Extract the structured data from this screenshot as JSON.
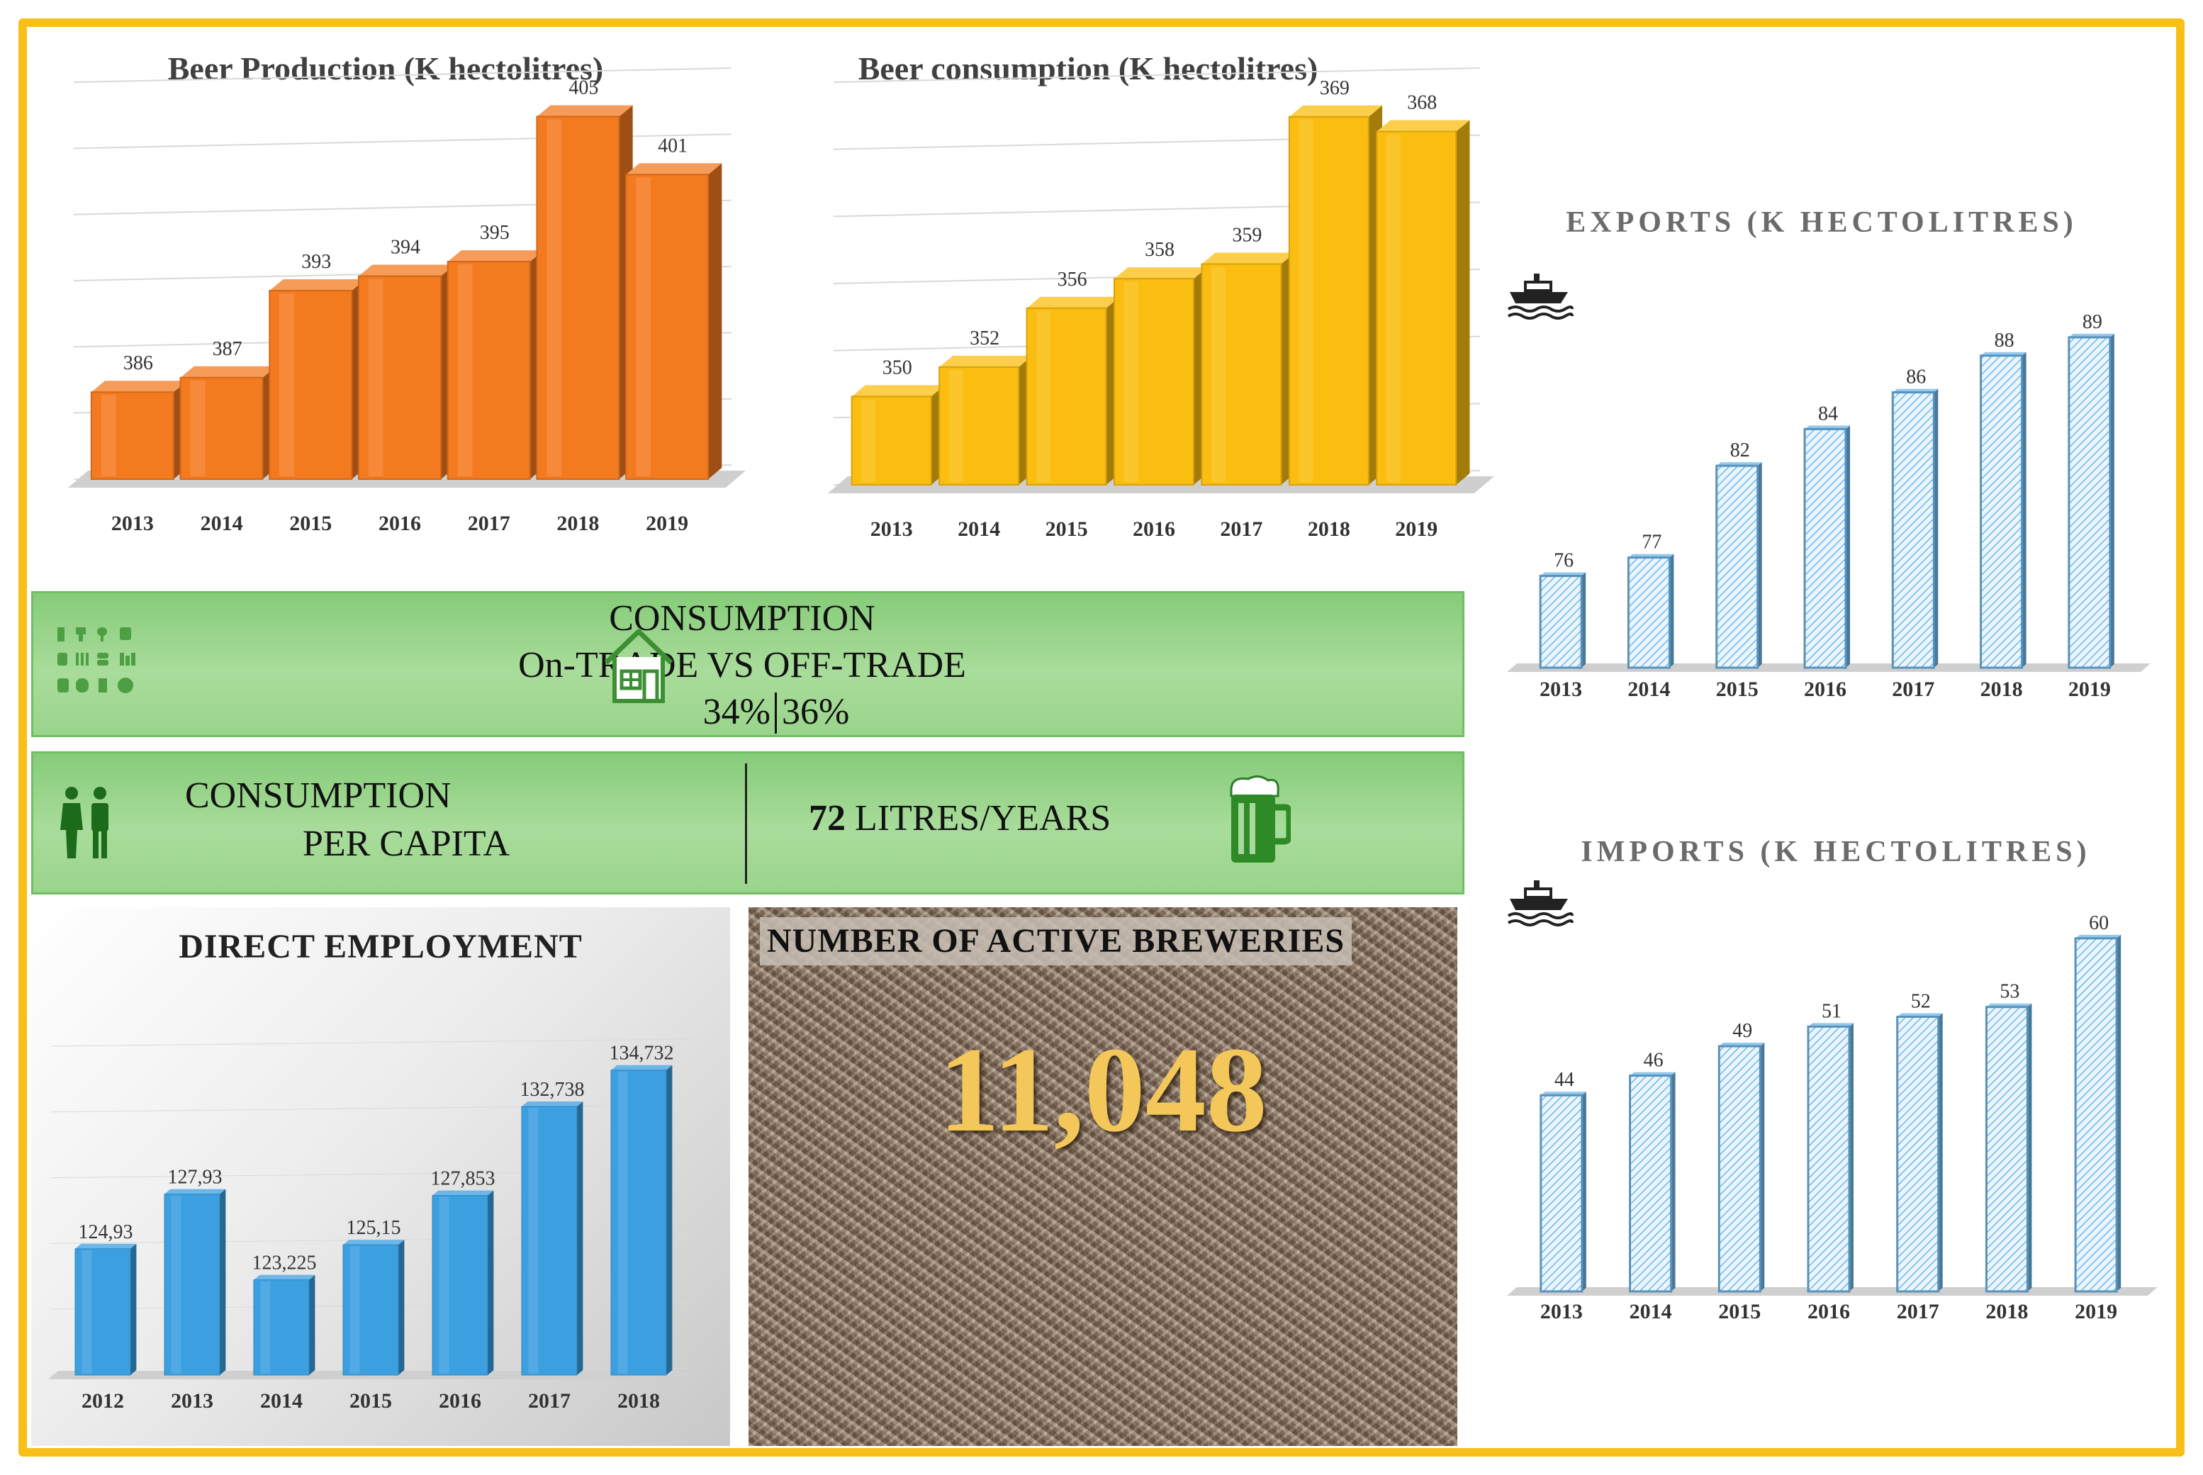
{
  "colors": {
    "frame": "#f8bf18",
    "production": "#f47a20",
    "consumption": "#fbbd10",
    "trade": "#6fb7e8",
    "employment": "#3b9fe0",
    "band": "#98d389"
  },
  "production": {
    "title": "Beer Production  (K hectolitres)"
  },
  "consumption": {
    "title": "Beer consumption  (K hectolitres)"
  },
  "exports": {
    "title": "EXPORTS (K HECTOLITRES)",
    "icon": "ship-icon"
  },
  "imports": {
    "title": "IMPORTS (K HECTOLITRES)",
    "icon": "ship-icon"
  },
  "trade_band": {
    "line1": "CONSUMPTION",
    "line2": "On-TRADE VS OFF-TRADE",
    "on_trade": "34%",
    "off_trade": "36%",
    "left_icon": "drinks-icon",
    "right_icon": "house-icon"
  },
  "capita_band": {
    "line1": "CONSUMPTION",
    "line2": "PER CAPITA",
    "value_number": "72",
    "value_unit": " LITRES/YEARS",
    "left_icon": "people-icon",
    "right_icon": "beer-mug-icon"
  },
  "employment": {
    "title": "DIRECT  EMPLOYMENT"
  },
  "breweries": {
    "title": "NUMBER OF ACTIVE  BREWERIES",
    "value": "11,048"
  },
  "chart_data": [
    {
      "id": "production",
      "type": "bar",
      "title": "Beer Production  (K hectolitres)",
      "categories": [
        "2013",
        "2014",
        "2015",
        "2016",
        "2017",
        "2018",
        "2019"
      ],
      "values": [
        386,
        387,
        393,
        394,
        395,
        405,
        401
      ],
      "labels": [
        "386",
        "387",
        "393",
        "394",
        "395",
        "405",
        "401"
      ],
      "ylim": [
        380,
        406
      ],
      "grid": true
    },
    {
      "id": "consumption",
      "type": "bar",
      "title": "Beer consumption  (K hectolitres)",
      "categories": [
        "2013",
        "2014",
        "2015",
        "2016",
        "2017",
        "2018",
        "2019"
      ],
      "values": [
        350,
        352,
        356,
        358,
        359,
        369,
        368
      ],
      "labels": [
        "350",
        "352",
        "356",
        "358",
        "359",
        "369",
        "368"
      ],
      "ylim": [
        344,
        370
      ],
      "grid": true
    },
    {
      "id": "exports",
      "type": "bar",
      "title": "EXPORTS (K HECTOLITRES)",
      "categories": [
        "2013",
        "2014",
        "2015",
        "2016",
        "2017",
        "2018",
        "2019"
      ],
      "values": [
        76,
        77,
        82,
        84,
        86,
        88,
        89
      ],
      "labels": [
        "76",
        "77",
        "82",
        "84",
        "86",
        "88",
        "89"
      ],
      "ylim": [
        71,
        90
      ],
      "grid": false
    },
    {
      "id": "imports",
      "type": "bar",
      "title": "IMPORTS (K HECTOLITRES)",
      "categories": [
        "2013",
        "2014",
        "2015",
        "2016",
        "2017",
        "2018",
        "2019"
      ],
      "values": [
        44,
        46,
        49,
        51,
        52,
        53,
        60
      ],
      "labels": [
        "44",
        "46",
        "49",
        "51",
        "52",
        "53",
        "60"
      ],
      "ylim": [
        24,
        61
      ],
      "grid": false
    },
    {
      "id": "employment",
      "type": "bar",
      "title": "DIRECT  EMPLOYMENT",
      "categories": [
        "2012",
        "2013",
        "2014",
        "2015",
        "2016",
        "2017",
        "2018"
      ],
      "values": [
        124930,
        127930,
        123225,
        125150,
        127853,
        132738,
        134732
      ],
      "labels": [
        "124,93",
        "127,93",
        "123,225",
        "125,15",
        "127,853",
        "132,738",
        "134,732"
      ],
      "ylim": [
        118000,
        135500
      ],
      "grid": true
    }
  ]
}
